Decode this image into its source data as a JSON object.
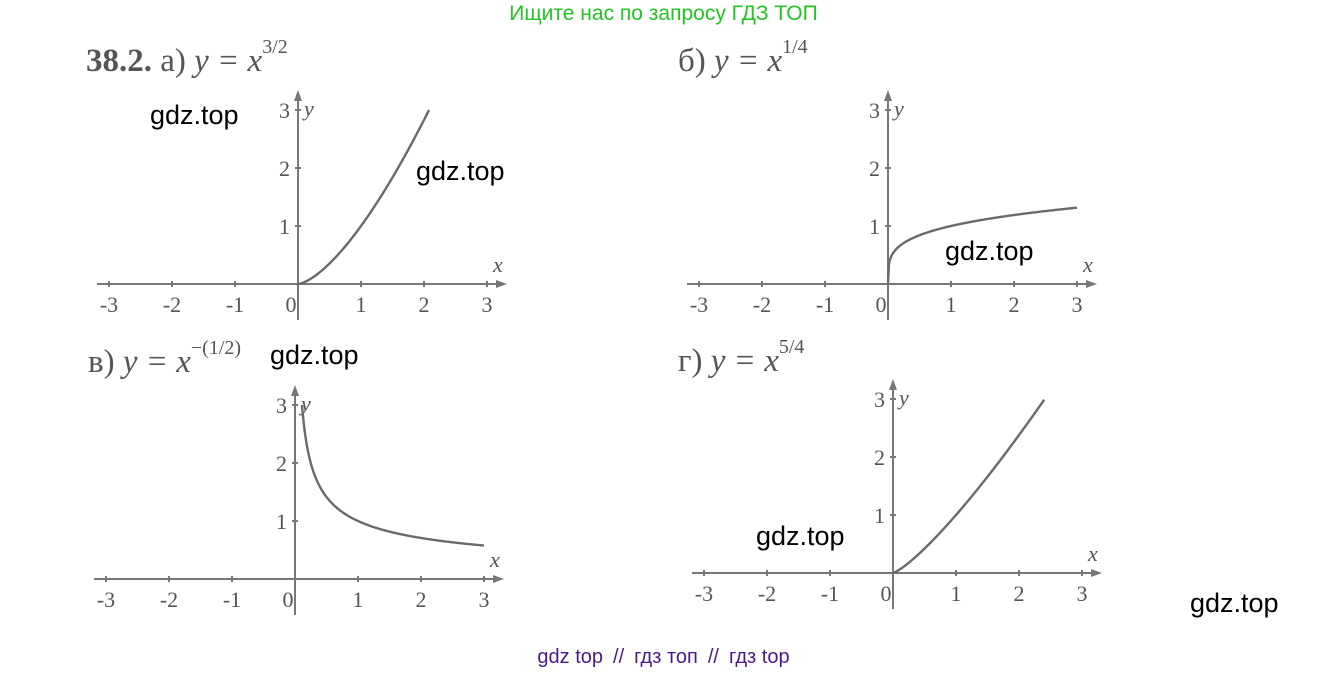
{
  "banner": "Ищите нас по запросу ГДЗ ТОП",
  "problem_number": "38.2.",
  "graphs": [
    {
      "label": "а)",
      "func": "y = x",
      "exp": "3/2"
    },
    {
      "label": "б)",
      "func": "y = x",
      "exp": "1/4"
    },
    {
      "label": "в)",
      "func": "y = x",
      "exp": "−(1/2)"
    },
    {
      "label": "г)",
      "func": "y = x",
      "exp": "5/4"
    }
  ],
  "axis": {
    "x_label": "x",
    "y_label": "y",
    "x_ticks": [
      "-3",
      "-2",
      "-1",
      "0",
      "1",
      "2",
      "3"
    ],
    "y_ticks": [
      "1",
      "2",
      "3"
    ]
  },
  "watermark": "gdz.top",
  "footer": [
    "gdz top",
    "гдз топ",
    "гдз top"
  ],
  "footer_sep": "//",
  "chart_data": [
    {
      "type": "line",
      "function": "y = x^(3/2)",
      "x": [
        0,
        0.5,
        1,
        1.5,
        2,
        2.08
      ],
      "y": [
        0,
        0.35,
        1,
        1.84,
        2.83,
        3.0
      ],
      "xlim": [
        -3,
        3
      ],
      "ylim": [
        0,
        3
      ]
    },
    {
      "type": "line",
      "function": "y = x^(1/4)",
      "x": [
        0,
        0.1,
        0.5,
        1,
        2,
        3
      ],
      "y": [
        0,
        0.56,
        0.84,
        1,
        1.19,
        1.32
      ],
      "xlim": [
        -3,
        3
      ],
      "ylim": [
        0,
        3
      ]
    },
    {
      "type": "line",
      "function": "y = x^(-1/2)",
      "x": [
        0.11,
        0.25,
        0.5,
        1,
        2,
        3
      ],
      "y": [
        3.0,
        2,
        1.41,
        1,
        0.71,
        0.58
      ],
      "xlim": [
        -3,
        3
      ],
      "ylim": [
        0,
        3
      ]
    },
    {
      "type": "line",
      "function": "y = x^(5/4)",
      "x": [
        0,
        0.5,
        1,
        1.5,
        2,
        2.4
      ],
      "y": [
        0,
        0.42,
        1,
        1.66,
        2.38,
        2.99
      ],
      "xlim": [
        -3,
        3
      ],
      "ylim": [
        0,
        3
      ]
    }
  ]
}
